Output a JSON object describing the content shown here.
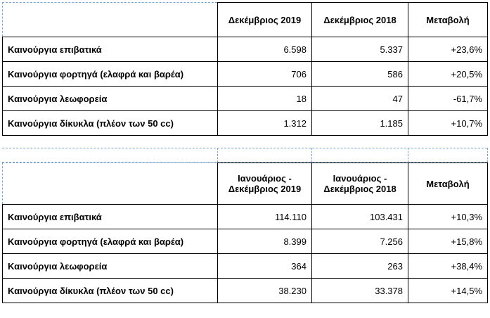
{
  "table1": {
    "headers": [
      "",
      "Δεκέμβριος 2019",
      "Δεκέμβριος 2018",
      "Μεταβολή"
    ],
    "rows": [
      [
        "Καινούργια επιβατικά",
        "6.598",
        "5.337",
        "+23,6%"
      ],
      [
        "Καινούργια φορτηγά (ελαφρά και βαρέα)",
        "706",
        "586",
        "+20,5%"
      ],
      [
        "Καινούργια λεωφορεία",
        "18",
        "47",
        "-61,7%"
      ],
      [
        "Καινούργια δίκυκλα (πλέον των 50 cc)",
        "1.312",
        "1.185",
        "+10,7%"
      ]
    ]
  },
  "table2": {
    "headers": [
      "",
      "Ιανουάριος - Δεκέμβριος 2019",
      "Ιανουάριος - Δεκέμβριος 2018",
      "Μεταβολή"
    ],
    "rows": [
      [
        "Καινούργια επιβατικά",
        "114.110",
        "103.431",
        "+10,3%"
      ],
      [
        "Καινούργια φορτηγά (ελαφρά και βαρέα)",
        "8.399",
        "7.256",
        "+15,8%"
      ],
      [
        "Καινούργια λεωφορεία",
        "364",
        "263",
        "+38,4%"
      ],
      [
        "Καινούργια δίκυκλα (πλέον των 50 cc)",
        "38.230",
        "33.378",
        "+14,5%"
      ]
    ]
  },
  "colors": {
    "gridline": "#7aa6d6",
    "border": "#000000"
  }
}
